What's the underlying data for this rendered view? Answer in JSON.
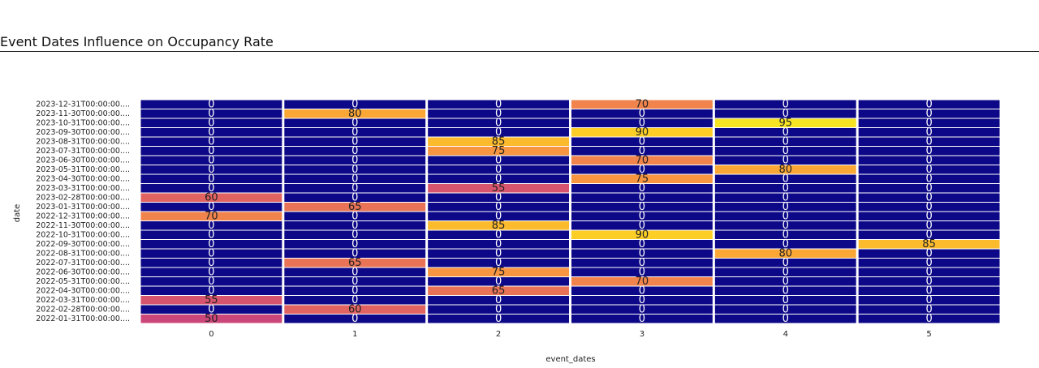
{
  "chart_data": {
    "type": "heatmap",
    "title": "Event Dates Influence on Occupancy Rate",
    "xlabel": "event_dates",
    "ylabel": "date",
    "x": [
      "0",
      "1",
      "2",
      "3",
      "4",
      "5"
    ],
    "y": [
      "2022-01-31T00:00:00....",
      "2022-02-28T00:00:00....",
      "2022-03-31T00:00:00....",
      "2022-04-30T00:00:00....",
      "2022-05-31T00:00:00....",
      "2022-06-30T00:00:00....",
      "2022-07-31T00:00:00....",
      "2022-08-31T00:00:00....",
      "2022-09-30T00:00:00....",
      "2022-10-31T00:00:00....",
      "2022-11-30T00:00:00....",
      "2022-12-31T00:00:00....",
      "2023-01-31T00:00:00....",
      "2023-02-28T00:00:00....",
      "2023-03-31T00:00:00....",
      "2023-04-30T00:00:00....",
      "2023-05-31T00:00:00....",
      "2023-06-30T00:00:00....",
      "2023-07-31T00:00:00....",
      "2023-08-31T00:00:00....",
      "2023-09-30T00:00:00....",
      "2023-10-31T00:00:00....",
      "2023-11-30T00:00:00....",
      "2023-12-31T00:00:00...."
    ],
    "z": [
      [
        50,
        0,
        0,
        0,
        0,
        0
      ],
      [
        0,
        60,
        0,
        0,
        0,
        0
      ],
      [
        55,
        0,
        0,
        0,
        0,
        0
      ],
      [
        0,
        0,
        65,
        0,
        0,
        0
      ],
      [
        0,
        0,
        0,
        70,
        0,
        0
      ],
      [
        0,
        0,
        75,
        0,
        0,
        0
      ],
      [
        0,
        65,
        0,
        0,
        0,
        0
      ],
      [
        0,
        0,
        0,
        0,
        80,
        0
      ],
      [
        0,
        0,
        0,
        0,
        0,
        85
      ],
      [
        0,
        0,
        0,
        90,
        0,
        0
      ],
      [
        0,
        0,
        85,
        0,
        0,
        0
      ],
      [
        70,
        0,
        0,
        0,
        0,
        0
      ],
      [
        0,
        65,
        0,
        0,
        0,
        0
      ],
      [
        60,
        0,
        0,
        0,
        0,
        0
      ],
      [
        0,
        0,
        55,
        0,
        0,
        0
      ],
      [
        0,
        0,
        0,
        75,
        0,
        0
      ],
      [
        0,
        0,
        0,
        0,
        80,
        0
      ],
      [
        0,
        0,
        0,
        70,
        0,
        0
      ],
      [
        0,
        0,
        75,
        0,
        0,
        0
      ],
      [
        0,
        0,
        85,
        0,
        0,
        0
      ],
      [
        0,
        0,
        0,
        90,
        0,
        0
      ],
      [
        0,
        0,
        0,
        0,
        95,
        0
      ],
      [
        0,
        80,
        0,
        0,
        0,
        0
      ],
      [
        0,
        0,
        0,
        70,
        0,
        0
      ]
    ],
    "zlim": [
      0,
      100
    ],
    "colorscale": "plasma",
    "legend": "none"
  }
}
